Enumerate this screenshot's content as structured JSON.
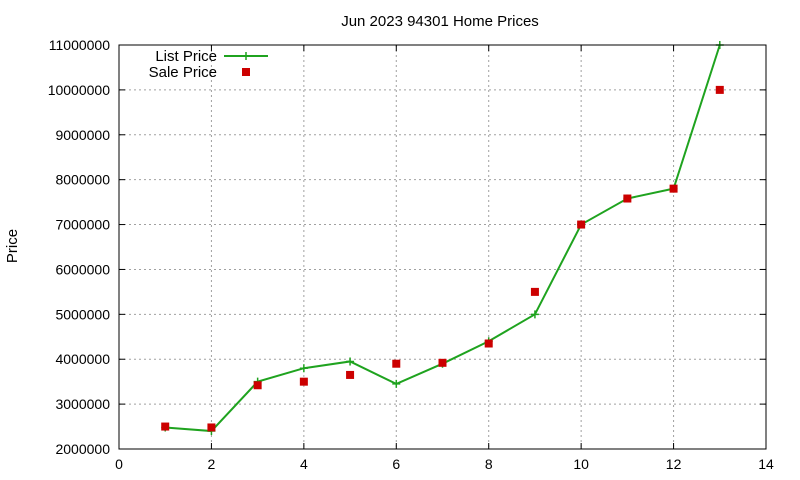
{
  "chart_data": {
    "type": "line",
    "title": "Jun 2023 94301 Home Prices",
    "xlabel": "",
    "ylabel": "Price",
    "xlim": [
      0,
      14
    ],
    "ylim": [
      2000000,
      11000000
    ],
    "x_ticks": [
      0,
      2,
      4,
      6,
      8,
      10,
      12,
      14
    ],
    "y_ticks": [
      2000000,
      3000000,
      4000000,
      5000000,
      6000000,
      7000000,
      8000000,
      9000000,
      10000000,
      11000000
    ],
    "grid": true,
    "legend_position": "top-left",
    "series": [
      {
        "name": "List Price",
        "style": "line-with-plus-markers",
        "color": "#1fa31f",
        "x": [
          1,
          2,
          3,
          4,
          5,
          6,
          7,
          8,
          9,
          10,
          11,
          12,
          13
        ],
        "y": [
          2480000,
          2400000,
          3500000,
          3800000,
          3950000,
          3450000,
          3900000,
          4400000,
          5000000,
          7000000,
          7580000,
          7800000,
          11000000
        ]
      },
      {
        "name": "Sale Price",
        "style": "square-markers",
        "color": "#cc0000",
        "x": [
          1,
          2,
          3,
          4,
          5,
          6,
          7,
          8,
          9,
          10,
          11,
          12,
          13
        ],
        "y": [
          2500000,
          2480000,
          3420000,
          3500000,
          3650000,
          3900000,
          3920000,
          4350000,
          5500000,
          7000000,
          7580000,
          7800000,
          10000000
        ]
      }
    ]
  }
}
